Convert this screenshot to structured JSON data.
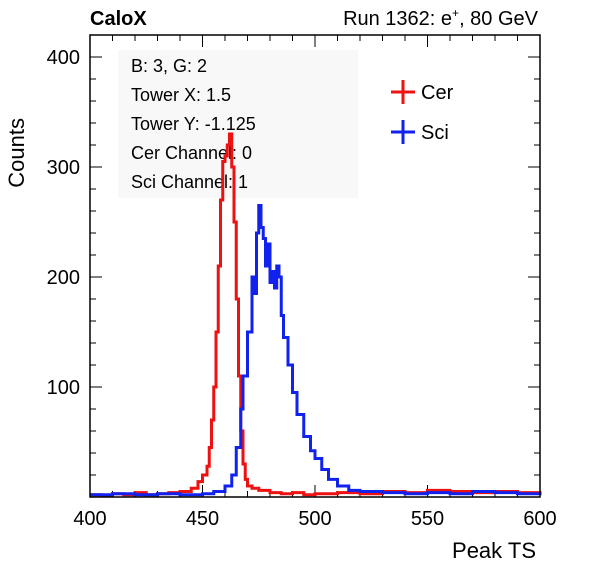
{
  "header": {
    "brand": "CaloX",
    "run_prefix": "Run 1362: e",
    "run_charge": "+",
    "run_suffix": ", 80 GeV"
  },
  "info_box": {
    "lines": [
      "B: 3, G: 2",
      "Tower X: 1.5",
      "Tower Y: -1.125",
      "Cer Channel: 0",
      "Sci Channel: 1"
    ]
  },
  "colors": {
    "Cer": "#ee1111",
    "Sci": "#1122ee",
    "info_box_bg": "#f8f8f8"
  },
  "chart_data": {
    "type": "line",
    "title": "",
    "xlabel": "Peak TS",
    "ylabel": "Counts",
    "xlim": [
      400,
      600
    ],
    "ylim": [
      0,
      420
    ],
    "xticks": [
      400,
      450,
      500,
      550,
      600
    ],
    "yticks": [
      100,
      200,
      300,
      400
    ],
    "grid": false,
    "legend": {
      "placement": "top-right"
    },
    "series": [
      {
        "name": "Cer",
        "x": [
          400,
          405,
          410,
          415,
          420,
          425,
          430,
          435,
          440,
          445,
          448,
          450,
          452,
          453,
          454,
          455,
          456,
          457,
          458,
          459,
          460,
          461,
          462,
          463,
          464,
          465,
          466,
          467,
          468,
          469,
          470,
          472,
          475,
          480,
          485,
          490,
          495,
          500,
          510,
          520,
          530,
          540,
          550,
          560,
          570,
          580,
          590,
          600
        ],
        "values": [
          2,
          1,
          3,
          2,
          4,
          2,
          3,
          4,
          5,
          8,
          14,
          20,
          28,
          45,
          70,
          100,
          150,
          210,
          270,
          305,
          310,
          320,
          330,
          300,
          250,
          180,
          110,
          60,
          30,
          16,
          10,
          8,
          6,
          4,
          3,
          4,
          2,
          3,
          4,
          3,
          5,
          4,
          6,
          5,
          4,
          5,
          4,
          3
        ]
      },
      {
        "name": "Sci",
        "x": [
          400,
          410,
          420,
          430,
          440,
          450,
          455,
          460,
          463,
          465,
          467,
          468,
          470,
          472,
          473,
          474,
          475,
          476,
          477,
          478,
          479,
          480,
          481,
          482,
          483,
          484,
          485,
          486,
          488,
          490,
          492,
          495,
          498,
          500,
          503,
          506,
          510,
          515,
          520,
          530,
          540,
          550,
          560,
          570,
          580,
          590,
          600
        ],
        "values": [
          2,
          3,
          2,
          3,
          2,
          3,
          5,
          10,
          20,
          45,
          80,
          110,
          150,
          200,
          185,
          240,
          265,
          245,
          235,
          210,
          230,
          195,
          205,
          190,
          210,
          200,
          165,
          145,
          120,
          95,
          75,
          55,
          42,
          35,
          25,
          16,
          10,
          6,
          5,
          4,
          3,
          4,
          3,
          5,
          4,
          3,
          4
        ]
      }
    ]
  }
}
